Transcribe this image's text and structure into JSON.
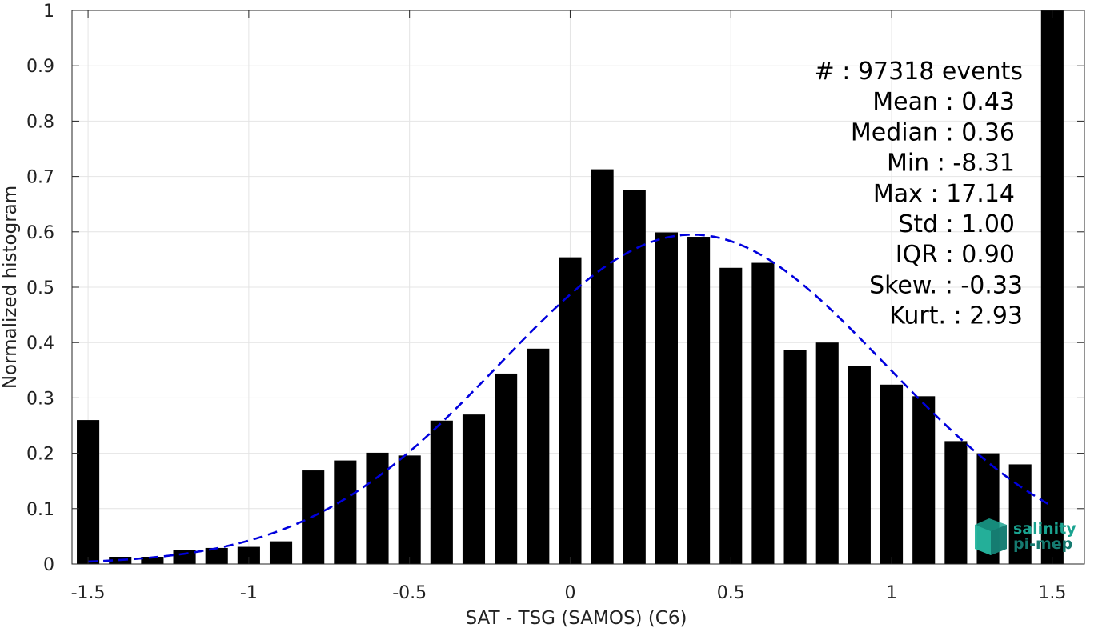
{
  "chart_data": {
    "type": "bar",
    "xlabel": "SAT - TSG (SAMOS) (C6)",
    "ylabel": "Normalized histogram",
    "xlim": [
      -1.55,
      1.6
    ],
    "ylim": [
      0,
      1
    ],
    "grid": true,
    "x_ticks": [
      -1.5,
      -1,
      -0.5,
      0,
      0.5,
      1,
      1.5
    ],
    "x_tick_labels": [
      "-1.5",
      "-1",
      "-0.5",
      "0",
      "0.5",
      "1",
      "1.5"
    ],
    "y_ticks": [
      0,
      0.1,
      0.2,
      0.3,
      0.4,
      0.5,
      0.6,
      0.7,
      0.8,
      0.9,
      1
    ],
    "y_tick_labels": [
      "0",
      "0.1",
      "0.2",
      "0.3",
      "0.4",
      "0.5",
      "0.6",
      "0.7",
      "0.8",
      "0.9",
      "1"
    ],
    "bar_color": "#000000",
    "bar_width": 0.07,
    "x": [
      -1.5,
      -1.4,
      -1.3,
      -1.2,
      -1.1,
      -1.0,
      -0.9,
      -0.8,
      -0.7,
      -0.6,
      -0.5,
      -0.4,
      -0.3,
      -0.2,
      -0.1,
      0.0,
      0.1,
      0.2,
      0.3,
      0.4,
      0.5,
      0.6,
      0.7,
      0.8,
      0.9,
      1.0,
      1.1,
      1.2,
      1.3,
      1.4,
      1.5
    ],
    "values": [
      0.26,
      0.013,
      0.013,
      0.025,
      0.029,
      0.031,
      0.041,
      0.169,
      0.187,
      0.201,
      0.196,
      0.259,
      0.27,
      0.344,
      0.389,
      0.554,
      0.713,
      0.675,
      0.599,
      0.591,
      0.535,
      0.544,
      0.387,
      0.4,
      0.357,
      0.324,
      0.303,
      0.222,
      0.2,
      0.18,
      1.0
    ],
    "fit_curve": {
      "type": "gaussian",
      "mean": 0.38,
      "sigma": 0.6,
      "peak": 0.595,
      "x_range": [
        -1.5,
        1.5
      ],
      "color": "#0000dd",
      "style": "dashed"
    },
    "stats": [
      "#  : 97318 events",
      "Mean : 0.43",
      "Median : 0.36",
      "Min : -8.31",
      "Max : 17.14",
      "Std : 1.00",
      "IQR : 0.90",
      "Skew. : -0.33",
      "Kurt. : 2.93"
    ]
  },
  "logo": {
    "line1": "salinity",
    "line2": "pi-mep",
    "colors": {
      "primary": "#1aa390",
      "secondary": "#157a70"
    }
  }
}
